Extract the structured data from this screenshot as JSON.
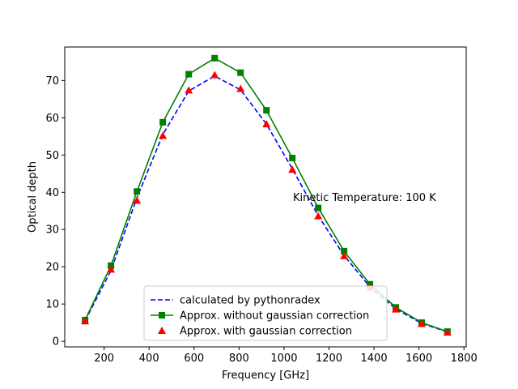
{
  "chart_data": {
    "type": "line",
    "xlabel": "Frequency [GHz]",
    "ylabel": "Optical depth",
    "xlim": [
      25,
      1810
    ],
    "ylim": [
      -1.5,
      79
    ],
    "xticks": [
      200,
      400,
      600,
      800,
      1000,
      1200,
      1400,
      1600,
      1800
    ],
    "yticks": [
      0,
      10,
      20,
      30,
      40,
      50,
      60,
      70
    ],
    "grid": false,
    "legend_position": "lower center",
    "annotation": {
      "text": "Kinetic Temperature: 100 K",
      "x": 1040,
      "y": 38.8
    },
    "x": [
      115.3,
      230.5,
      345.8,
      461.0,
      576.3,
      691.5,
      806.7,
      921.8,
      1036.9,
      1152.0,
      1267.0,
      1382.0,
      1497.0,
      1612.0,
      1726.6
    ],
    "series": [
      {
        "name": "calculated by pythonradex",
        "color": "#0000ff",
        "style": "dashed",
        "marker": "none",
        "values": [
          5.5,
          19.0,
          38.5,
          55.5,
          67.2,
          71.2,
          67.5,
          58.3,
          46.3,
          33.7,
          23.0,
          14.6,
          8.7,
          4.8,
          2.5
        ]
      },
      {
        "name": "Approx. without gaussian correction",
        "color": "#008000",
        "style": "solid",
        "marker": "square",
        "values": [
          5.7,
          20.3,
          40.2,
          58.8,
          71.7,
          76.0,
          72.1,
          62.0,
          49.2,
          35.8,
          24.2,
          15.3,
          9.1,
          5.0,
          2.6
        ]
      },
      {
        "name": "Approx. with gaussian correction",
        "color": "#ff0000",
        "style": "none",
        "marker": "triangle",
        "values": [
          5.4,
          19.3,
          37.8,
          55.2,
          67.4,
          71.5,
          67.8,
          58.3,
          46.1,
          33.6,
          22.9,
          14.5,
          8.6,
          4.7,
          2.4
        ]
      }
    ]
  }
}
